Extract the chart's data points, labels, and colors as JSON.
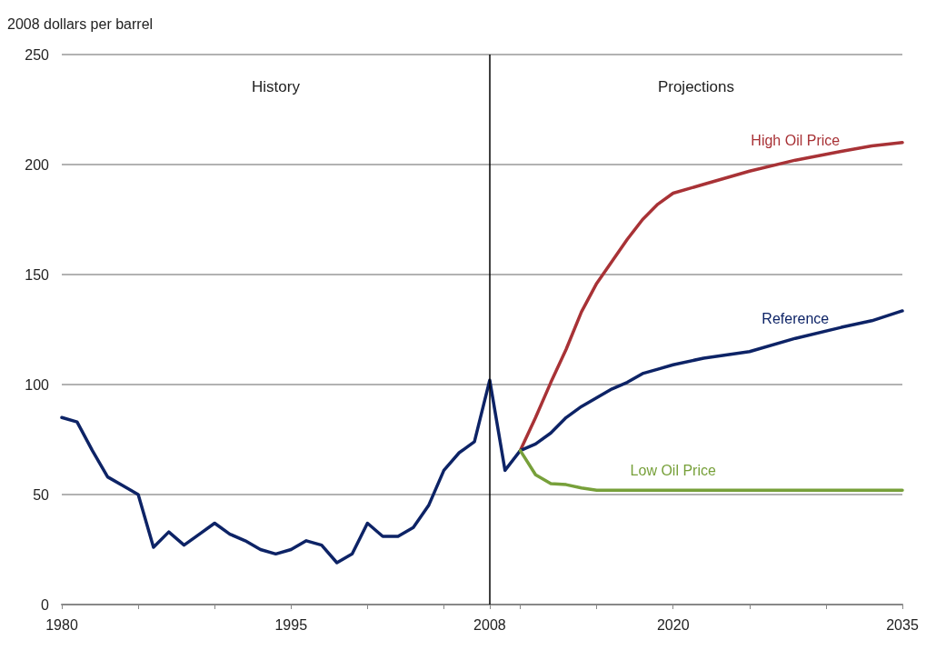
{
  "chart_data": {
    "type": "line",
    "ylabel": "2008 dollars per barrel",
    "xlim": [
      1980,
      2035
    ],
    "ylim": [
      0,
      250
    ],
    "xticks": [
      1980,
      {
        "value": 1985,
        "label": null
      },
      {
        "value": 1990,
        "label": null
      },
      1995,
      {
        "value": 2000,
        "label": null
      },
      {
        "value": 2005,
        "label": null
      },
      2008,
      {
        "value": 2010,
        "label": null
      },
      {
        "value": 2015,
        "label": null
      },
      2020,
      {
        "value": 2025,
        "label": null
      },
      {
        "value": 2030,
        "label": null
      },
      2035
    ],
    "yticks": [
      0,
      50,
      100,
      150,
      200,
      250
    ],
    "grid": "y",
    "legend": false,
    "marker": "none",
    "line_style": "solid",
    "ref_lines": [
      {
        "axis": "x",
        "value": 2008,
        "label": null,
        "color": "#000000"
      }
    ],
    "annotations": [
      "History",
      "Projections"
    ],
    "series": [
      {
        "color": "#0d2366",
        "x": [
          1980,
          1981,
          1982,
          1983,
          1984,
          1985,
          1986,
          1987,
          1988,
          1989,
          1990,
          1991,
          1992,
          1993,
          1994,
          1995,
          1996,
          1997,
          1998,
          1999,
          2000,
          2001,
          2002,
          2003,
          2004,
          2005,
          2006,
          2007,
          2008,
          2009,
          2010
        ],
        "values": [
          85,
          83,
          70,
          58,
          54,
          50,
          26,
          33,
          27,
          32,
          37,
          32,
          29,
          25,
          23,
          25,
          29,
          27,
          19,
          23,
          37,
          31,
          31,
          35,
          45,
          61,
          69,
          74,
          102,
          61,
          70
        ]
      },
      {
        "name": "High Oil Price",
        "color": "#a83236",
        "x": [
          2010,
          2011,
          2012,
          2013,
          2014,
          2015,
          2016,
          2017,
          2018,
          2019,
          2020,
          2022,
          2025,
          2028,
          2031,
          2033,
          2035
        ],
        "values": [
          70,
          85,
          101,
          116,
          133,
          146,
          156,
          166,
          175,
          182,
          187,
          191,
          197,
          202,
          206,
          208.5,
          210
        ]
      },
      {
        "name": "Reference",
        "color": "#0d2366",
        "x": [
          2010,
          2011,
          2012,
          2013,
          2014,
          2015,
          2016,
          2017,
          2018,
          2019,
          2020,
          2022,
          2025,
          2028,
          2031,
          2033,
          2035
        ],
        "values": [
          70,
          73,
          78,
          85,
          90,
          94,
          98,
          101,
          105,
          107,
          109,
          112,
          115,
          121,
          126,
          129,
          133.5
        ]
      },
      {
        "name": "Low Oil Price",
        "color": "#77a03a",
        "x": [
          2010,
          2011,
          2012,
          2013,
          2014,
          2015,
          2020,
          2025,
          2030,
          2035
        ],
        "values": [
          70,
          59,
          55,
          54.5,
          53,
          52,
          52,
          52,
          52,
          52
        ]
      }
    ]
  }
}
